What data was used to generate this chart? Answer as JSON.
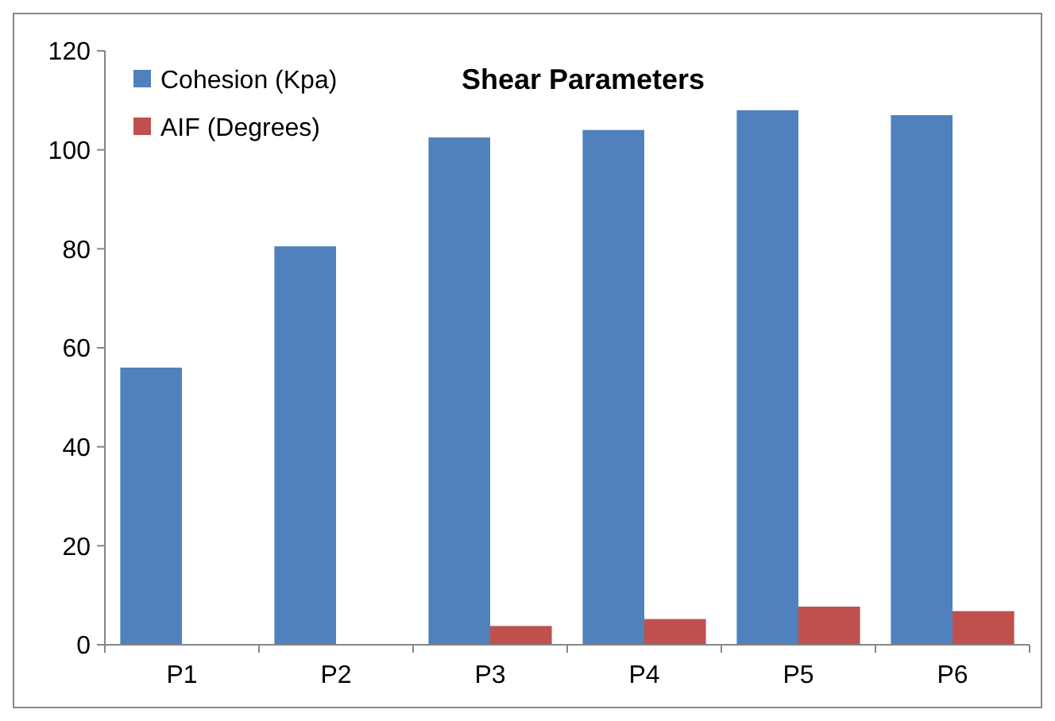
{
  "chart_data": {
    "type": "bar",
    "title": "Shear Parameters",
    "categories": [
      "P1",
      "P2",
      "P3",
      "P4",
      "P5",
      "P6"
    ],
    "series": [
      {
        "name": "Cohesion (Kpa)",
        "color": "#4f81bd",
        "values": [
          56,
          80.5,
          102.5,
          104,
          108,
          107
        ]
      },
      {
        "name": "AIF (Degrees)",
        "color": "#c0504d",
        "values": [
          0,
          0,
          3.8,
          5.2,
          7.7,
          6.8
        ]
      }
    ],
    "ylim": [
      0,
      120
    ],
    "yticks": [
      0,
      20,
      40,
      60,
      80,
      100,
      120
    ],
    "grid": false,
    "legend": "top left"
  }
}
